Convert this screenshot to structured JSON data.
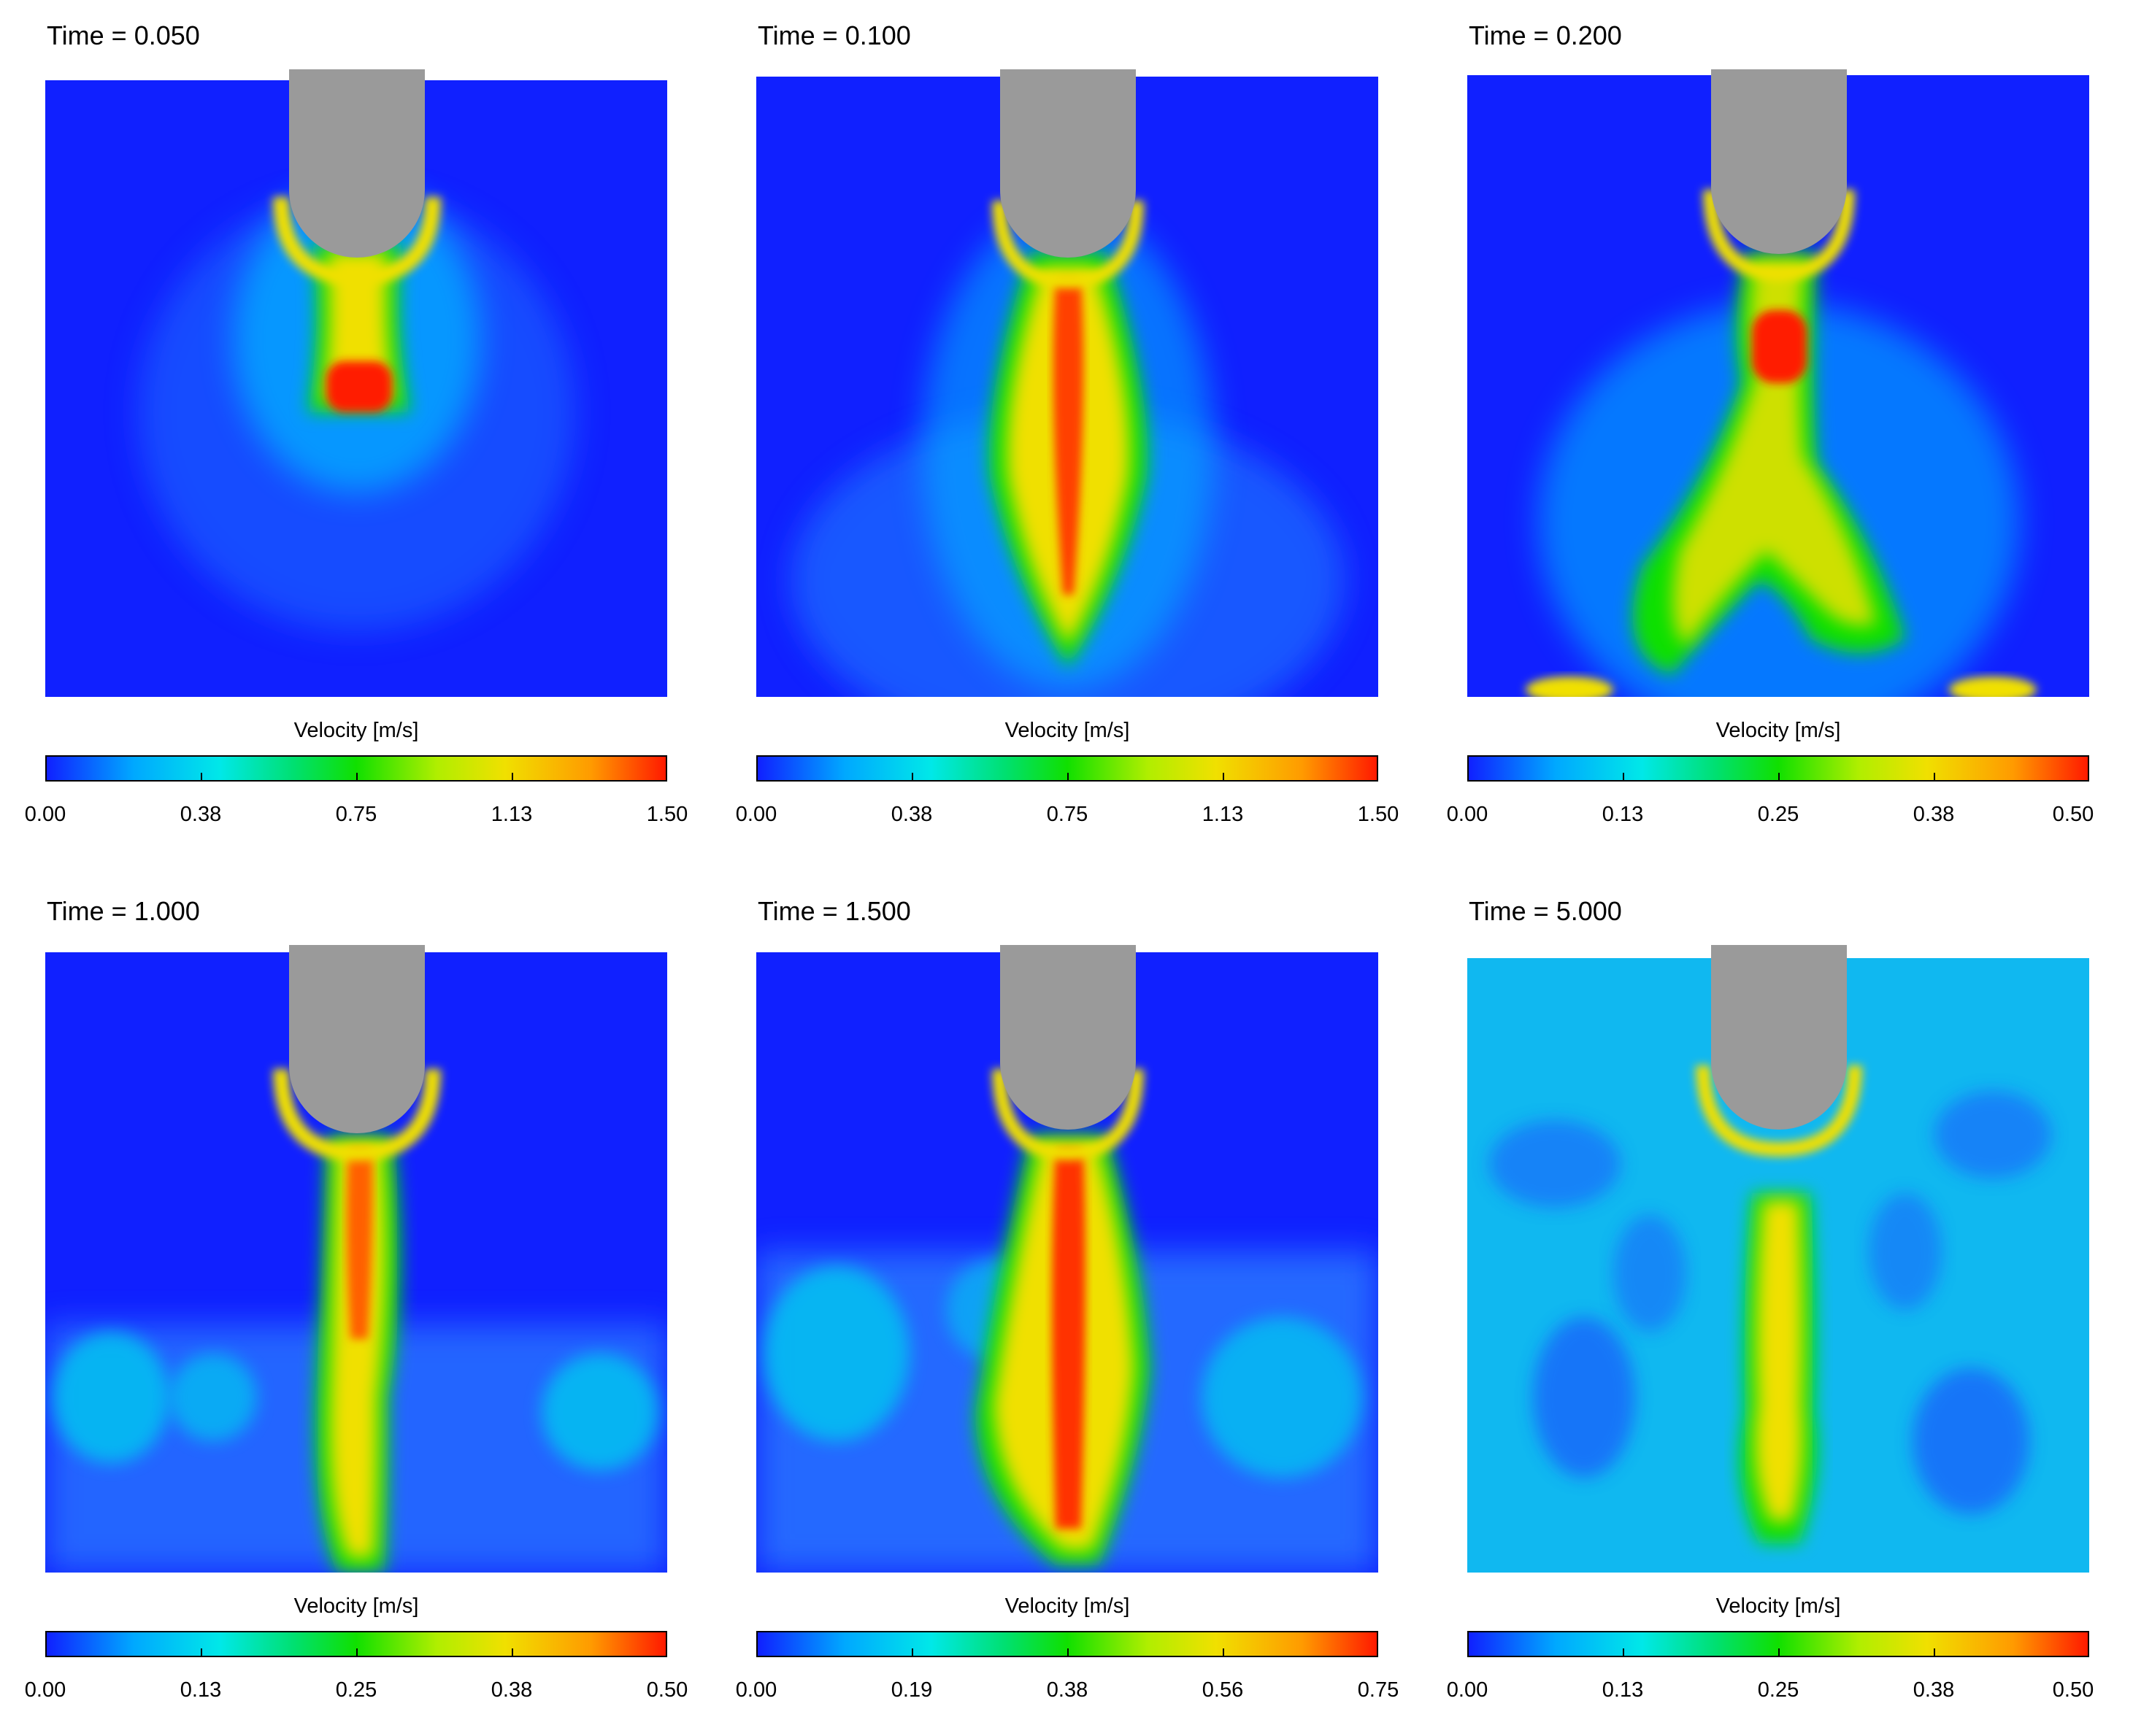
{
  "panels": [
    {
      "time_label": "Time = 0.050",
      "colorbar_title": "Velocity [m/s]",
      "ticks": [
        "0.00",
        "0.38",
        "0.75",
        "1.13",
        "1.50"
      ]
    },
    {
      "time_label": "Time = 0.100",
      "colorbar_title": "Velocity [m/s]",
      "ticks": [
        "0.00",
        "0.38",
        "0.75",
        "1.13",
        "1.50"
      ]
    },
    {
      "time_label": "Time = 0.200",
      "colorbar_title": "Velocity [m/s]",
      "ticks": [
        "0.00",
        "0.13",
        "0.25",
        "0.38",
        "0.50"
      ]
    },
    {
      "time_label": "Time = 1.000",
      "colorbar_title": "Velocity [m/s]",
      "ticks": [
        "0.00",
        "0.13",
        "0.25",
        "0.38",
        "0.50"
      ]
    },
    {
      "time_label": "Time = 1.500",
      "colorbar_title": "Velocity [m/s]",
      "ticks": [
        "0.00",
        "0.19",
        "0.38",
        "0.56",
        "0.75"
      ]
    },
    {
      "time_label": "Time = 5.000",
      "colorbar_title": "Velocity [m/s]",
      "ticks": [
        "0.00",
        "0.13",
        "0.25",
        "0.38",
        "0.50"
      ]
    }
  ],
  "colors": {
    "low": "#1020ff",
    "mid": "#10e000",
    "high": "#ff1a00",
    "probe": "#9a9a9a"
  }
}
